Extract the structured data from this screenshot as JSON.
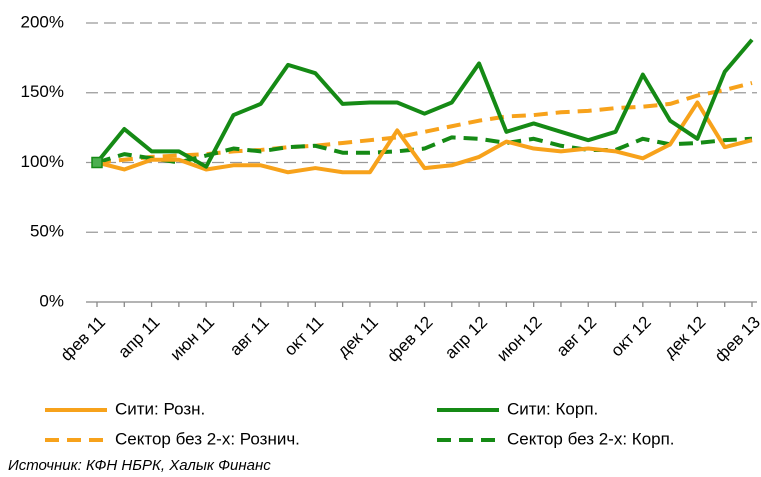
{
  "chart_data": {
    "type": "line",
    "categories": [
      "фев 11",
      null,
      "апр 11",
      null,
      "июн 11",
      null,
      "авг 11",
      null,
      "окт 11",
      null,
      "дек 11",
      null,
      "фев 12",
      null,
      "апр 12",
      null,
      "июн 12",
      null,
      "авг 12",
      null,
      "окт 12",
      null,
      "дек 12",
      null,
      "фев 13"
    ],
    "series": [
      {
        "name": "Сити: Розн.",
        "color": "#f7a21b",
        "dashed": false,
        "values": [
          100,
          95,
          102,
          102,
          95,
          98,
          98,
          93,
          96,
          93,
          93,
          123,
          96,
          98,
          104,
          115,
          110,
          108,
          110,
          108,
          103,
          113,
          143,
          111,
          116
        ]
      },
      {
        "name": "Сити: Корп.",
        "color": "#158a15",
        "dashed": false,
        "values": [
          100,
          124,
          108,
          108,
          97,
          134,
          142,
          170,
          164,
          142,
          143,
          143,
          135,
          143,
          171,
          122,
          128,
          122,
          116,
          122,
          163,
          130,
          117,
          165,
          188
        ]
      },
      {
        "name": "Сектор без 2-х: Рознич.",
        "color": "#f7a21b",
        "dashed": true,
        "values": [
          100,
          102,
          104,
          105,
          106,
          108,
          109,
          111,
          112,
          114,
          116,
          118,
          122,
          126,
          130,
          133,
          134,
          136,
          137,
          139,
          140,
          142,
          148,
          152,
          157
        ]
      },
      {
        "name": "Сектор без 2-х: Корп.",
        "color": "#158a15",
        "dashed": true,
        "values": [
          100,
          106,
          103,
          100,
          105,
          110,
          108,
          111,
          112,
          107,
          107,
          108,
          110,
          118,
          117,
          114,
          117,
          112,
          109,
          109,
          117,
          113,
          114,
          116,
          117
        ]
      }
    ],
    "ylim": [
      0,
      200
    ],
    "yticks": [
      {
        "value": 0,
        "label": "0%"
      },
      {
        "value": 50,
        "label": "50%"
      },
      {
        "value": 100,
        "label": "100%"
      },
      {
        "value": 150,
        "label": "150%"
      },
      {
        "value": 200,
        "label": "200%"
      }
    ],
    "grid": true,
    "source": "Источник: КФН НБРК, Халык Финанс"
  }
}
